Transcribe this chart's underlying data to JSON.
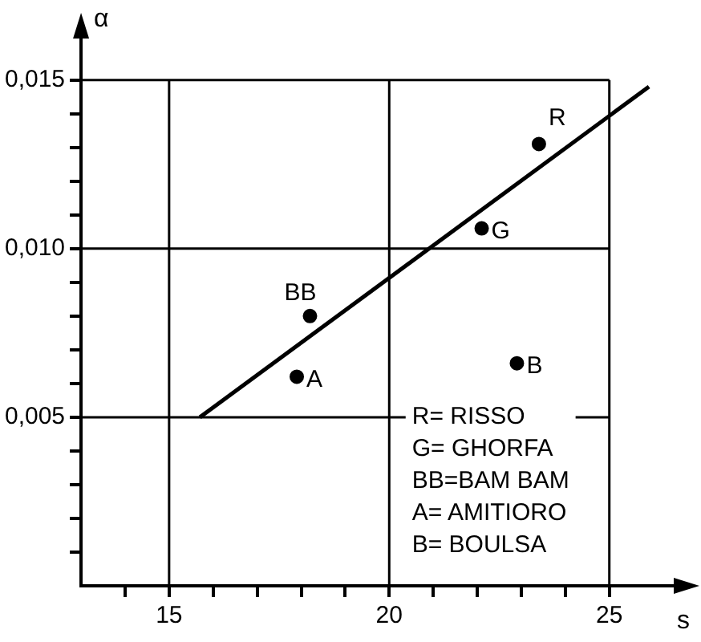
{
  "chart_data": {
    "type": "scatter",
    "xlabel": "s",
    "ylabel": "α",
    "xlim": [
      13,
      26.9
    ],
    "ylim": [
      0,
      0.0168
    ],
    "xticks": [
      {
        "value": 14,
        "label": null
      },
      15,
      {
        "value": 16,
        "label": null
      },
      {
        "value": 17,
        "label": null
      },
      {
        "value": 18,
        "label": null
      },
      {
        "value": 19,
        "label": null
      },
      20,
      {
        "value": 21,
        "label": null
      },
      {
        "value": 22,
        "label": null
      },
      {
        "value": 23,
        "label": null
      },
      {
        "value": 24,
        "label": null
      },
      25
    ],
    "yticks": [
      {
        "value": 0.001,
        "label": null
      },
      {
        "value": 0.002,
        "label": null
      },
      {
        "value": 0.003,
        "label": null
      },
      {
        "value": 0.004,
        "label": null
      },
      {
        "value": 0.005,
        "label": "0,005"
      },
      {
        "value": 0.006,
        "label": null
      },
      {
        "value": 0.007,
        "label": null
      },
      {
        "value": 0.008,
        "label": null
      },
      {
        "value": 0.009,
        "label": null
      },
      {
        "value": 0.01,
        "label": "0,010"
      },
      {
        "value": 0.011,
        "label": null
      },
      {
        "value": 0.012,
        "label": null
      },
      {
        "value": 0.013,
        "label": null
      },
      {
        "value": 0.014,
        "label": null
      },
      {
        "value": 0.015,
        "label": "0,015"
      }
    ],
    "grid": true,
    "legend": false,
    "marker": "circle",
    "series": [
      {
        "color": "#000000",
        "x": [
          23.4,
          22.1,
          18.2,
          17.9,
          22.9
        ],
        "values": [
          0.0131,
          0.0106,
          0.008,
          0.0062,
          0.0066
        ]
      },
      {
        "type": "line",
        "color": "#000000",
        "marker": "none",
        "line_style": "solid",
        "x": [
          15.7,
          25.9
        ],
        "values": [
          0.005,
          0.0148
        ]
      }
    ],
    "annotations": [
      {
        "text": "R",
        "x": 23.4,
        "y": 0.0131
      },
      {
        "text": "G",
        "x": 22.1,
        "y": 0.0106
      },
      {
        "text": "BB",
        "x": 18.2,
        "y": 0.008
      },
      {
        "text": "A",
        "x": 17.9,
        "y": 0.0062
      },
      {
        "text": "B",
        "x": 22.9,
        "y": 0.0066
      },
      "R= RISSO",
      "G= GHORFA",
      "BB=BAM BAM",
      "A= AMITIORO",
      "B= BOULSA"
    ]
  }
}
